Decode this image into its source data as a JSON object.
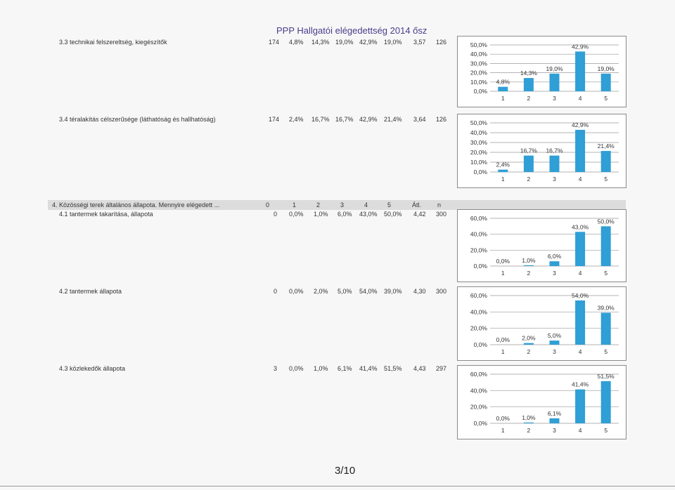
{
  "page_title": "PPP Hallgatói elégedettség 2014 ősz",
  "page_number": "3/10",
  "section_header": {
    "label": "4. Közösségi terek általános állapota. Mennyire elégedett ...",
    "columns": [
      "0",
      "1",
      "2",
      "3",
      "4",
      "5",
      "Átl.",
      "n"
    ]
  },
  "rows": [
    {
      "label": "3.3 technikai felszereltség, kiegészítők",
      "cells": [
        "174",
        "4,8%",
        "14,3%",
        "19,0%",
        "42,9%",
        "19,0%",
        "3,57",
        "126"
      ]
    },
    {
      "label": "3.4 téralakítás célszerűsége (láthatóság és hallhatóság)",
      "cells": [
        "174",
        "2,4%",
        "16,7%",
        "16,7%",
        "42,9%",
        "21,4%",
        "3,64",
        "126"
      ]
    },
    {
      "label": "4.1 tantermek takarítása, állapota",
      "cells": [
        "0",
        "0,0%",
        "1,0%",
        "6,0%",
        "43,0%",
        "50,0%",
        "4,42",
        "300"
      ]
    },
    {
      "label": "4.2 tantermek állapota",
      "cells": [
        "0",
        "0,0%",
        "2,0%",
        "5,0%",
        "54,0%",
        "39,0%",
        "4,30",
        "300"
      ]
    },
    {
      "label": "4.3 közlekedők állapota",
      "cells": [
        "3",
        "0,0%",
        "1,0%",
        "6,1%",
        "41,4%",
        "51,5%",
        "4,43",
        "297"
      ]
    }
  ],
  "colors": {
    "bar": "#2f9fd6",
    "grid": "#9a9a9a"
  },
  "chart_data": [
    {
      "type": "bar",
      "categories": [
        "1",
        "2",
        "3",
        "4",
        "5"
      ],
      "values": [
        4.8,
        14.3,
        19.0,
        42.9,
        19.0
      ],
      "data_labels": [
        "4,8%",
        "14,3%",
        "19,0%",
        "42,9%",
        "19,0%"
      ],
      "yticks": [
        "0,0%",
        "10,0%",
        "20,0%",
        "30,0%",
        "40,0%",
        "50,0%"
      ],
      "ytick_values": [
        0,
        10,
        20,
        30,
        40,
        50
      ],
      "ylim": [
        0,
        50
      ],
      "grid": true
    },
    {
      "type": "bar",
      "categories": [
        "1",
        "2",
        "3",
        "4",
        "5"
      ],
      "values": [
        2.4,
        16.7,
        16.7,
        42.9,
        21.4
      ],
      "data_labels": [
        "2,4%",
        "16,7%",
        "16,7%",
        "42,9%",
        "21,4%"
      ],
      "yticks": [
        "0,0%",
        "10,0%",
        "20,0%",
        "30,0%",
        "40,0%",
        "50,0%"
      ],
      "ytick_values": [
        0,
        10,
        20,
        30,
        40,
        50
      ],
      "ylim": [
        0,
        50
      ],
      "grid": true
    },
    {
      "type": "bar",
      "categories": [
        "1",
        "2",
        "3",
        "4",
        "5"
      ],
      "values": [
        0.0,
        1.0,
        6.0,
        43.0,
        50.0
      ],
      "data_labels": [
        "0,0%",
        "1,0%",
        "6,0%",
        "43,0%",
        "50,0%"
      ],
      "yticks": [
        "0,0%",
        "20,0%",
        "40,0%",
        "60,0%"
      ],
      "ytick_values": [
        0,
        20,
        40,
        60
      ],
      "ylim": [
        0,
        60
      ],
      "grid": true
    },
    {
      "type": "bar",
      "categories": [
        "1",
        "2",
        "3",
        "4",
        "5"
      ],
      "values": [
        0.0,
        2.0,
        5.0,
        54.0,
        39.0
      ],
      "data_labels": [
        "0,0%",
        "2,0%",
        "5,0%",
        "54,0%",
        "39,0%"
      ],
      "yticks": [
        "0,0%",
        "20,0%",
        "40,0%",
        "60,0%"
      ],
      "ytick_values": [
        0,
        20,
        40,
        60
      ],
      "ylim": [
        0,
        60
      ],
      "grid": true
    },
    {
      "type": "bar",
      "categories": [
        "1",
        "2",
        "3",
        "4",
        "5"
      ],
      "values": [
        0.0,
        1.0,
        6.1,
        41.4,
        51.5
      ],
      "data_labels": [
        "0,0%",
        "1,0%",
        "6,1%",
        "41,4%",
        "51,5%"
      ],
      "yticks": [
        "0,0%",
        "20,0%",
        "40,0%",
        "60,0%"
      ],
      "ytick_values": [
        0,
        20,
        40,
        60
      ],
      "ylim": [
        0,
        60
      ],
      "grid": true
    }
  ]
}
